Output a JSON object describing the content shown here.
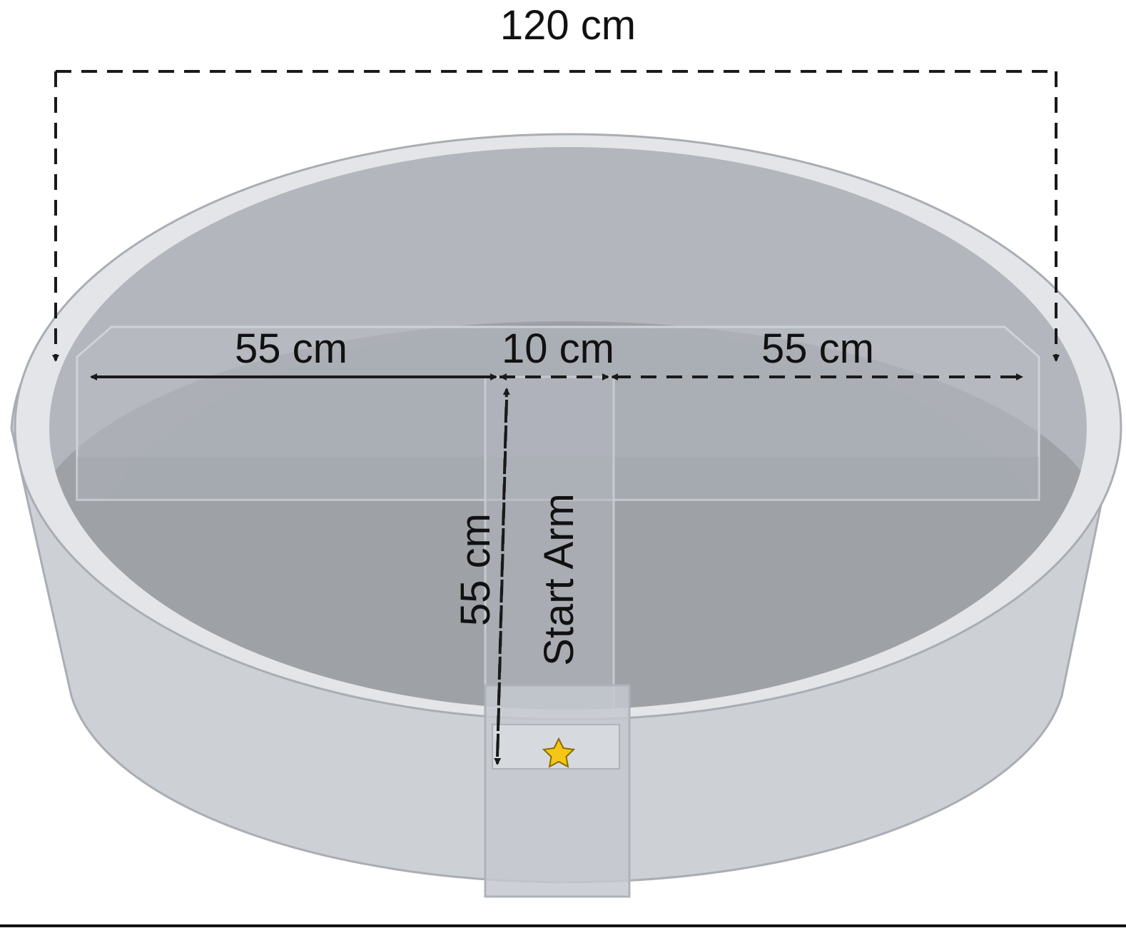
{
  "dimensions": {
    "overall_width": "120 cm",
    "left_arm": "55 cm",
    "center_width": "10 cm",
    "right_arm": "55 cm",
    "start_arm_length": "55 cm"
  },
  "labels": {
    "start_arm": "Start Arm"
  },
  "icons": {
    "start_marker": "star-icon"
  },
  "colors": {
    "pool_wall": "#cdd0d5",
    "pool_rim": "#e3e5e8",
    "pool_floor": "#9ea1a6",
    "arms": "#b6bac2",
    "star": "#f5c518"
  }
}
